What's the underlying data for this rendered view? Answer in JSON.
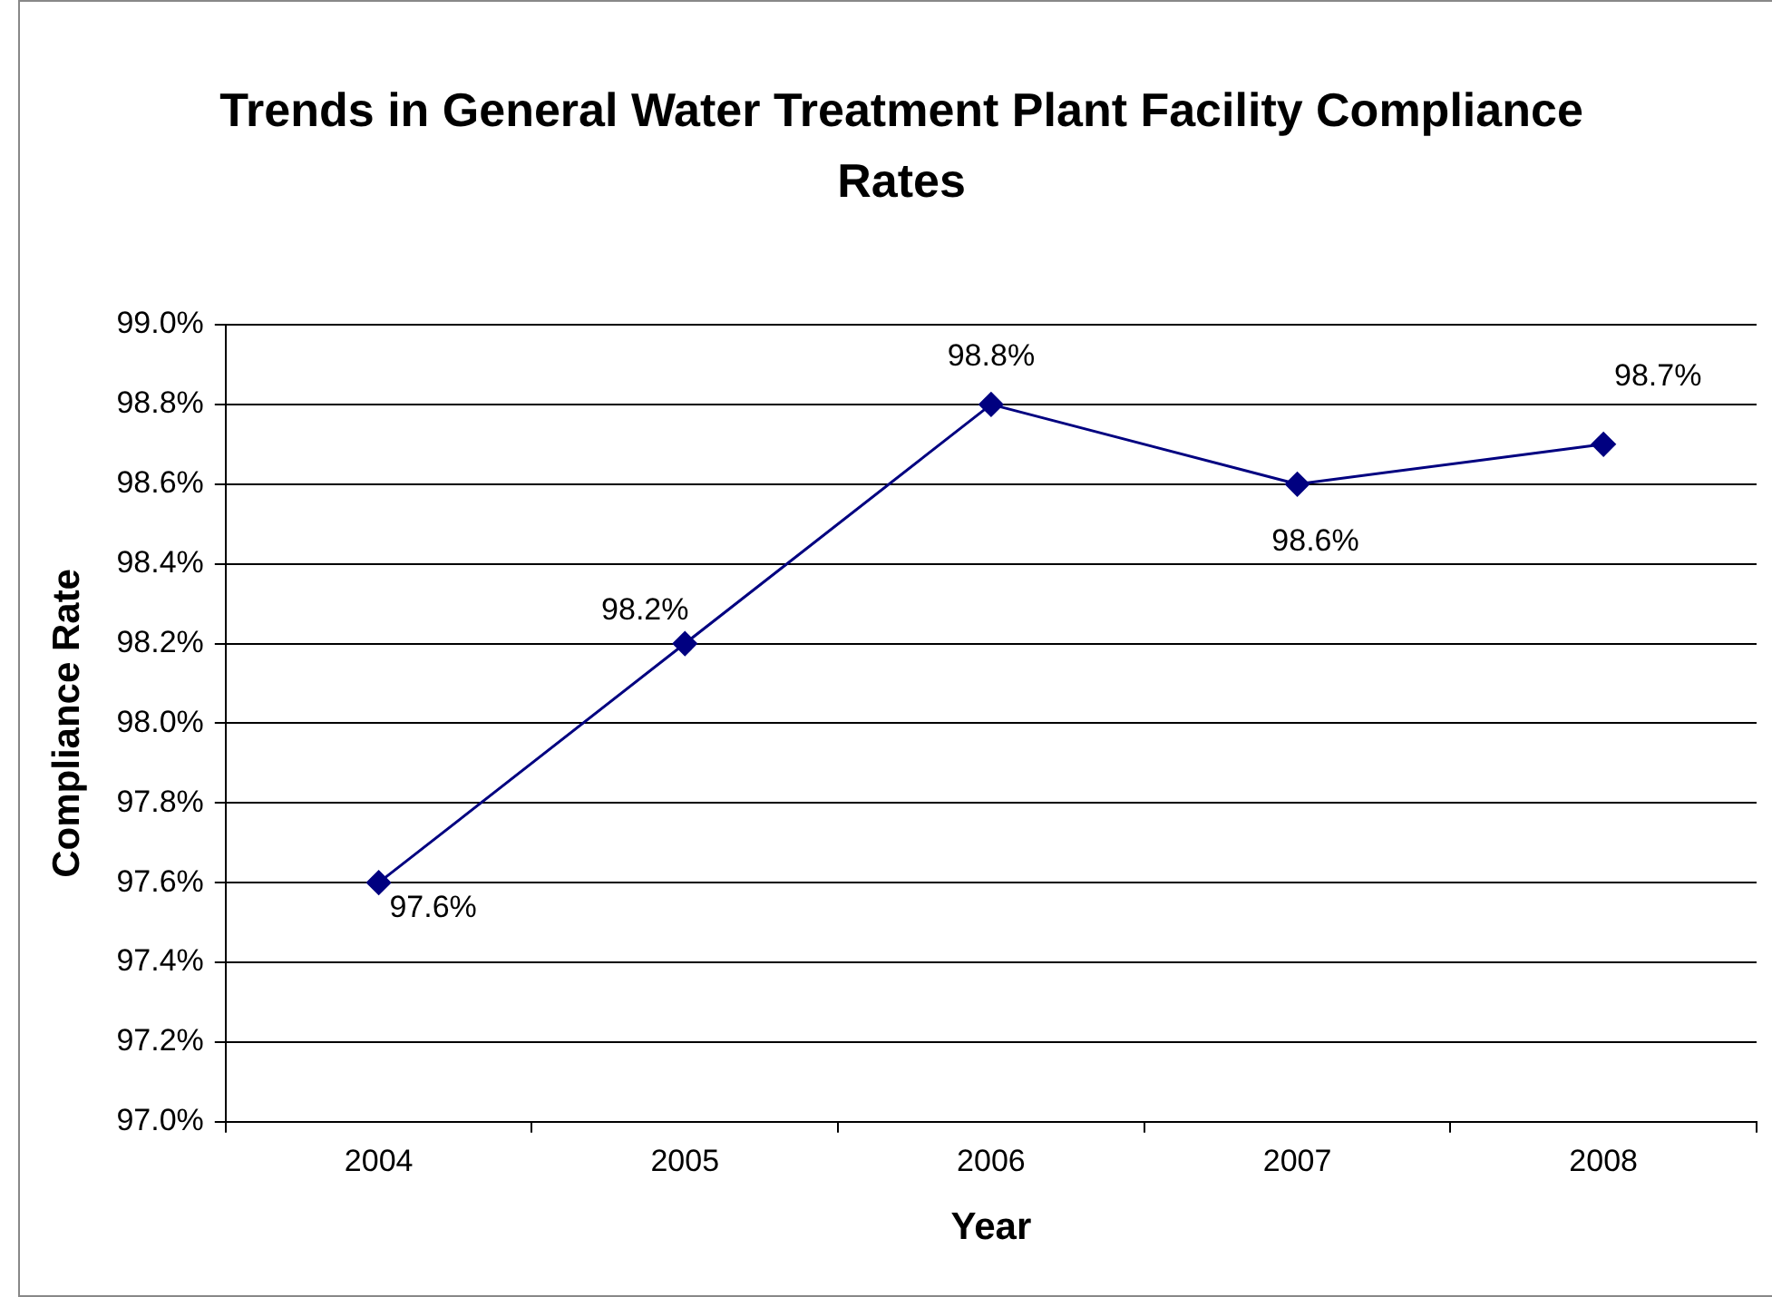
{
  "chart_data": {
    "type": "line",
    "title": "Trends in General Water Treatment Plant Facility Compliance Rates",
    "xlabel": "Year",
    "ylabel": "Compliance Rate",
    "categories": [
      "2004",
      "2005",
      "2006",
      "2007",
      "2008"
    ],
    "series": [
      {
        "color": "#000080",
        "values": [
          97.6,
          98.2,
          98.8,
          98.6,
          98.7
        ],
        "value_labels": [
          "97.6%",
          "98.2%",
          "98.8%",
          "98.6%",
          "98.7%"
        ]
      }
    ],
    "ylim": [
      97.0,
      99.0
    ],
    "yticks": [
      {
        "value": 97.0,
        "label": "97.0%"
      },
      {
        "value": 97.2,
        "label": "97.2%"
      },
      {
        "value": 97.4,
        "label": "97.4%"
      },
      {
        "value": 97.6,
        "label": "97.6%"
      },
      {
        "value": 97.8,
        "label": "97.8%"
      },
      {
        "value": 98.0,
        "label": "98.0%"
      },
      {
        "value": 98.2,
        "label": "98.2%"
      },
      {
        "value": 98.4,
        "label": "98.4%"
      },
      {
        "value": 98.6,
        "label": "98.6%"
      },
      {
        "value": 98.8,
        "label": "98.8%"
      },
      {
        "value": 99.0,
        "label": "99.0%"
      }
    ],
    "grid": "y",
    "legend": false,
    "marker": "diamond",
    "line_style": "solid"
  }
}
